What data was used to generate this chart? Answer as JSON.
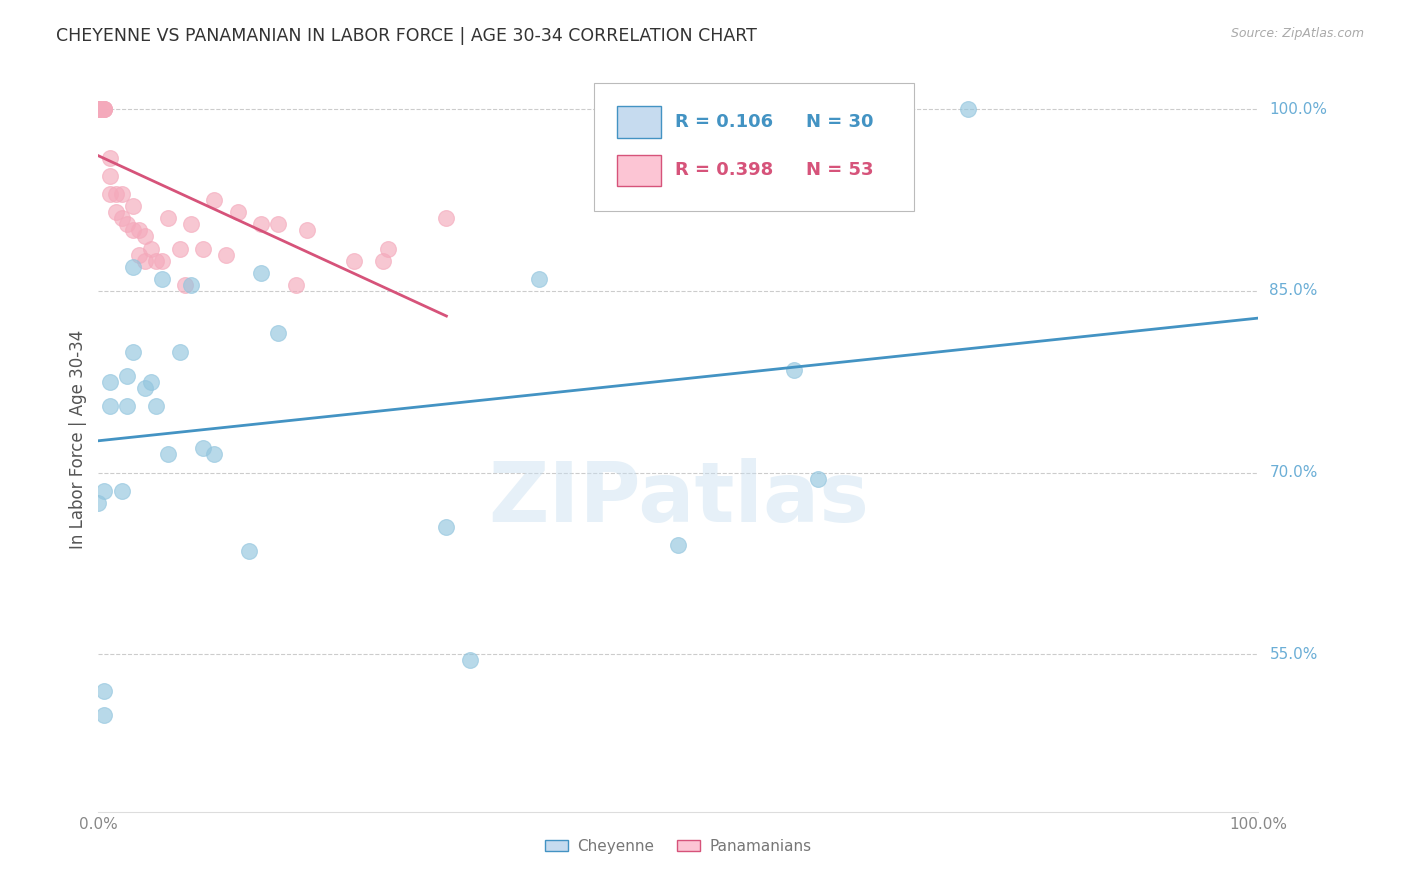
{
  "title": "CHEYENNE VS PANAMANIAN IN LABOR FORCE | AGE 30-34 CORRELATION CHART",
  "source": "Source: ZipAtlas.com",
  "ylabel": "In Labor Force | Age 30-34",
  "watermark": "ZIPatlas",
  "xlim": [
    0.0,
    1.0
  ],
  "ylim": [
    0.42,
    1.035
  ],
  "ytick_labels": [
    "55.0%",
    "70.0%",
    "85.0%",
    "100.0%"
  ],
  "ytick_values": [
    0.55,
    0.7,
    0.85,
    1.0
  ],
  "cheyenne_x": [
    0.0,
    0.01,
    0.01,
    0.02,
    0.025,
    0.025,
    0.03,
    0.03,
    0.04,
    0.045,
    0.05,
    0.055,
    0.06,
    0.07,
    0.08,
    0.09,
    0.1,
    0.13,
    0.14,
    0.155,
    0.3,
    0.32,
    0.6,
    0.62,
    0.75,
    0.005,
    0.005,
    0.005,
    0.38,
    0.5
  ],
  "cheyenne_y": [
    0.675,
    0.755,
    0.775,
    0.685,
    0.755,
    0.78,
    0.8,
    0.87,
    0.77,
    0.775,
    0.755,
    0.86,
    0.715,
    0.8,
    0.855,
    0.72,
    0.715,
    0.635,
    0.865,
    0.815,
    0.655,
    0.545,
    0.785,
    0.695,
    1.0,
    0.5,
    0.52,
    0.685,
    0.86,
    0.64
  ],
  "panamanian_x": [
    0.0,
    0.0,
    0.0,
    0.0,
    0.0,
    0.0,
    0.0,
    0.0,
    0.0,
    0.0,
    0.0,
    0.0,
    0.0,
    0.0,
    0.0,
    0.0,
    0.005,
    0.005,
    0.005,
    0.005,
    0.01,
    0.01,
    0.01,
    0.015,
    0.015,
    0.02,
    0.02,
    0.025,
    0.03,
    0.03,
    0.035,
    0.035,
    0.04,
    0.04,
    0.045,
    0.05,
    0.055,
    0.06,
    0.07,
    0.075,
    0.08,
    0.09,
    0.1,
    0.11,
    0.12,
    0.14,
    0.155,
    0.17,
    0.18,
    0.22,
    0.245,
    0.25,
    0.3
  ],
  "panamanian_y": [
    1.0,
    1.0,
    1.0,
    1.0,
    1.0,
    1.0,
    1.0,
    1.0,
    1.0,
    1.0,
    1.0,
    1.0,
    1.0,
    1.0,
    1.0,
    1.0,
    1.0,
    1.0,
    1.0,
    1.0,
    0.93,
    0.945,
    0.96,
    0.915,
    0.93,
    0.91,
    0.93,
    0.905,
    0.9,
    0.92,
    0.88,
    0.9,
    0.875,
    0.895,
    0.885,
    0.875,
    0.875,
    0.91,
    0.885,
    0.855,
    0.905,
    0.885,
    0.925,
    0.88,
    0.915,
    0.905,
    0.905,
    0.855,
    0.9,
    0.875,
    0.875,
    0.885,
    0.91
  ],
  "cheyenne_color": "#92c5de",
  "panamanian_color": "#f4a9bb",
  "cheyenne_line_color": "#4393c3",
  "panamanian_line_color": "#d6537a",
  "background_color": "#ffffff",
  "grid_color": "#cccccc",
  "title_color": "#333333",
  "tick_color": "#6baed6",
  "legend_r1": "R = 0.106",
  "legend_n1": "N = 30",
  "legend_r2": "R = 0.398",
  "legend_n2": "N = 53",
  "legend_color1": "#4393c3",
  "legend_color2": "#d6537a",
  "legend_face1": "#c6dbef",
  "legend_face2": "#fcc5d4"
}
